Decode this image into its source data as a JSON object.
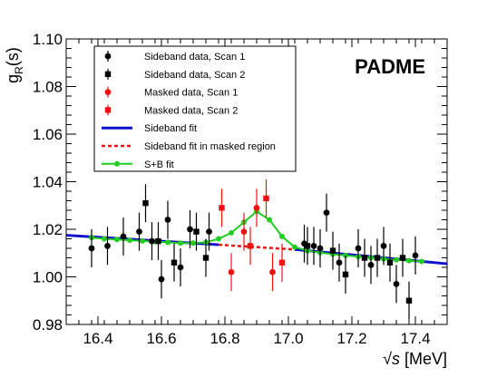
{
  "chart_data": {
    "type": "scatter",
    "ylabel_main": "g",
    "ylabel_sub": "R",
    "ylabel_arg": "(s)",
    "xlabel_sqrt": "√s",
    "xlabel_rest": " [MeV]",
    "annotation": "PADME",
    "xlim": [
      16.3,
      17.5
    ],
    "ylim": [
      0.98,
      1.1
    ],
    "x_ticks": [
      16.4,
      16.6,
      16.8,
      17.0,
      17.2,
      17.4
    ],
    "x_tick_labels": [
      "16.4",
      "16.6",
      "16.8",
      "17.0",
      "17.2",
      "17.4"
    ],
    "y_ticks": [
      0.98,
      1.0,
      1.02,
      1.04,
      1.06,
      1.08,
      1.1
    ],
    "y_tick_labels": [
      "0.98",
      "1.00",
      "1.02",
      "1.04",
      "1.06",
      "1.08",
      "1.10"
    ],
    "legend_position": "top-left",
    "legend": [
      {
        "label": "Sideband data, Scan 1",
        "kind": "marker",
        "marker": "circle",
        "color": "#000000"
      },
      {
        "label": "Sideband data, Scan 2",
        "kind": "marker",
        "marker": "square",
        "color": "#000000"
      },
      {
        "label": "Masked data, Scan 1",
        "kind": "marker",
        "marker": "circle",
        "color": "#ee1111"
      },
      {
        "label": "Masked data, Scan 2",
        "kind": "marker",
        "marker": "square",
        "color": "#ee1111"
      },
      {
        "label": "Sideband fit",
        "kind": "line",
        "dash": false,
        "color": "#1010cc"
      },
      {
        "label": "Sideband fit in masked region",
        "kind": "line",
        "dash": true,
        "color": "#ee1111"
      },
      {
        "label": "S+B fit",
        "kind": "line-marker",
        "color": "#22cc22"
      }
    ],
    "series": [
      {
        "name": "Sideband data, Scan 1",
        "marker": "circle",
        "color": "#000000",
        "points": [
          {
            "x": 16.38,
            "y": 1.012,
            "err": 0.008
          },
          {
            "x": 16.43,
            "y": 1.013,
            "err": 0.008
          },
          {
            "x": 16.48,
            "y": 1.017,
            "err": 0.008
          },
          {
            "x": 16.53,
            "y": 1.019,
            "err": 0.008
          },
          {
            "x": 16.57,
            "y": 1.015,
            "err": 0.008
          },
          {
            "x": 16.6,
            "y": 0.999,
            "err": 0.008
          },
          {
            "x": 16.62,
            "y": 1.024,
            "err": 0.008
          },
          {
            "x": 16.66,
            "y": 1.004,
            "err": 0.008
          },
          {
            "x": 16.69,
            "y": 1.02,
            "err": 0.008
          },
          {
            "x": 16.75,
            "y": 1.019,
            "err": 0.008
          },
          {
            "x": 17.05,
            "y": 1.014,
            "err": 0.008
          },
          {
            "x": 17.08,
            "y": 1.013,
            "err": 0.008
          },
          {
            "x": 17.1,
            "y": 1.012,
            "err": 0.008
          },
          {
            "x": 17.12,
            "y": 1.027,
            "err": 0.008
          },
          {
            "x": 17.16,
            "y": 1.006,
            "err": 0.008
          },
          {
            "x": 17.22,
            "y": 1.012,
            "err": 0.008
          },
          {
            "x": 17.26,
            "y": 1.005,
            "err": 0.008
          },
          {
            "x": 17.3,
            "y": 1.013,
            "err": 0.008
          },
          {
            "x": 17.34,
            "y": 0.997,
            "err": 0.008
          },
          {
            "x": 17.4,
            "y": 1.009,
            "err": 0.008
          }
        ]
      },
      {
        "name": "Sideband data, Scan 2",
        "marker": "square",
        "color": "#000000",
        "points": [
          {
            "x": 16.55,
            "y": 1.031,
            "err": 0.008
          },
          {
            "x": 16.59,
            "y": 1.015,
            "err": 0.008
          },
          {
            "x": 16.64,
            "y": 1.006,
            "err": 0.008
          },
          {
            "x": 16.71,
            "y": 1.019,
            "err": 0.008
          },
          {
            "x": 16.74,
            "y": 1.008,
            "err": 0.008
          },
          {
            "x": 17.06,
            "y": 1.013,
            "err": 0.008
          },
          {
            "x": 17.14,
            "y": 1.011,
            "err": 0.008
          },
          {
            "x": 17.18,
            "y": 1.001,
            "err": 0.008
          },
          {
            "x": 17.24,
            "y": 1.008,
            "err": 0.008
          },
          {
            "x": 17.28,
            "y": 1.008,
            "err": 0.008
          },
          {
            "x": 17.32,
            "y": 1.006,
            "err": 0.008
          },
          {
            "x": 17.36,
            "y": 1.008,
            "err": 0.008
          },
          {
            "x": 17.38,
            "y": 0.99,
            "err": 0.008
          }
        ]
      },
      {
        "name": "Masked data, Scan 1",
        "marker": "circle",
        "color": "#ee1111",
        "points": [
          {
            "x": 16.82,
            "y": 1.002,
            "err": 0.008
          },
          {
            "x": 16.86,
            "y": 1.019,
            "err": 0.008
          },
          {
            "x": 16.9,
            "y": 1.029,
            "err": 0.008
          },
          {
            "x": 16.95,
            "y": 1.002,
            "err": 0.008
          }
        ]
      },
      {
        "name": "Masked data, Scan 2",
        "marker": "square",
        "color": "#ee1111",
        "points": [
          {
            "x": 16.79,
            "y": 1.029,
            "err": 0.008
          },
          {
            "x": 16.88,
            "y": 1.013,
            "err": 0.008
          },
          {
            "x": 16.93,
            "y": 1.033,
            "err": 0.008
          },
          {
            "x": 16.98,
            "y": 1.006,
            "err": 0.008
          }
        ]
      }
    ],
    "sideband_fit": {
      "color": "#1010cc",
      "segments": [
        {
          "x": [
            16.3,
            16.78
          ],
          "y": [
            1.0175,
            1.0135
          ]
        },
        {
          "x": [
            17.02,
            17.5
          ],
          "y": [
            1.0115,
            1.0055
          ]
        }
      ]
    },
    "masked_fit": {
      "color": "#ee1111",
      "x": [
        16.78,
        17.02
      ],
      "y": [
        1.0135,
        1.0115
      ]
    },
    "sb_fit": {
      "color": "#22cc22",
      "x": [
        16.38,
        16.42,
        16.46,
        16.5,
        16.54,
        16.58,
        16.62,
        16.66,
        16.7,
        16.74,
        16.78,
        16.82,
        16.86,
        16.9,
        16.94,
        16.98,
        17.02,
        17.06,
        17.1,
        17.14,
        17.18,
        17.22,
        17.26,
        17.3,
        17.34,
        17.38,
        17.42
      ],
      "y": [
        1.0165,
        1.016,
        1.0157,
        1.0154,
        1.0151,
        1.0148,
        1.0145,
        1.0142,
        1.0142,
        1.0145,
        1.016,
        1.0185,
        1.023,
        1.0275,
        1.024,
        1.017,
        1.0125,
        1.011,
        1.0102,
        1.0095,
        1.009,
        1.0085,
        1.008,
        1.0075,
        1.0072,
        1.0068,
        1.0065
      ]
    }
  }
}
